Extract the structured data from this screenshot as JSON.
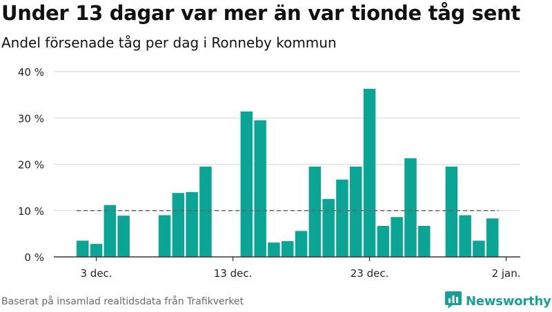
{
  "header": {
    "title": "Under 13 dagar var mer än var tionde tåg sent",
    "subtitle": "Andel försenade tåg per dag i Ronneby kommun"
  },
  "footer": {
    "source": "Baserat på insamlad realtidsdata från Trafikverket",
    "brand": "Newsworthy"
  },
  "colors": {
    "bar": "#0aa594",
    "grid": "#dddddd",
    "axis": "#333333",
    "reference_line": "#666666",
    "brand": "#17a097"
  },
  "chart_data": {
    "type": "bar",
    "ylim": [
      0,
      40
    ],
    "y_ticks": [
      0,
      10,
      20,
      30,
      40
    ],
    "y_tick_labels": [
      "0 %",
      "10 %",
      "20 %",
      "30 %",
      "40 %"
    ],
    "x_ticks": [
      "3 dec.",
      "13 dec.",
      "23 dec.",
      "2 jan."
    ],
    "x_tick_dates": [
      "2023-12-03",
      "2023-12-13",
      "2023-12-23",
      "2024-01-02"
    ],
    "grid": true,
    "reference_line": {
      "value": 10,
      "style": "dashed"
    },
    "categories": [
      "2023-12-02",
      "2023-12-03",
      "2023-12-04",
      "2023-12-05",
      "2023-12-06",
      "2023-12-07",
      "2023-12-08",
      "2023-12-09",
      "2023-12-10",
      "2023-12-11",
      "2023-12-12",
      "2023-12-13",
      "2023-12-14",
      "2023-12-15",
      "2023-12-16",
      "2023-12-17",
      "2023-12-18",
      "2023-12-19",
      "2023-12-20",
      "2023-12-21",
      "2023-12-22",
      "2023-12-23",
      "2023-12-24",
      "2023-12-25",
      "2023-12-26",
      "2023-12-27",
      "2023-12-28",
      "2023-12-29",
      "2023-12-30",
      "2023-12-31",
      "2024-01-01"
    ],
    "values": [
      3.5,
      2.8,
      11.2,
      8.9,
      null,
      null,
      9.0,
      13.8,
      14.0,
      19.5,
      null,
      null,
      31.4,
      29.5,
      3.1,
      3.4,
      5.6,
      19.5,
      12.5,
      16.7,
      19.5,
      36.3,
      6.7,
      8.6,
      21.3,
      6.7,
      null,
      19.5,
      9.0,
      3.5,
      8.3
    ]
  }
}
